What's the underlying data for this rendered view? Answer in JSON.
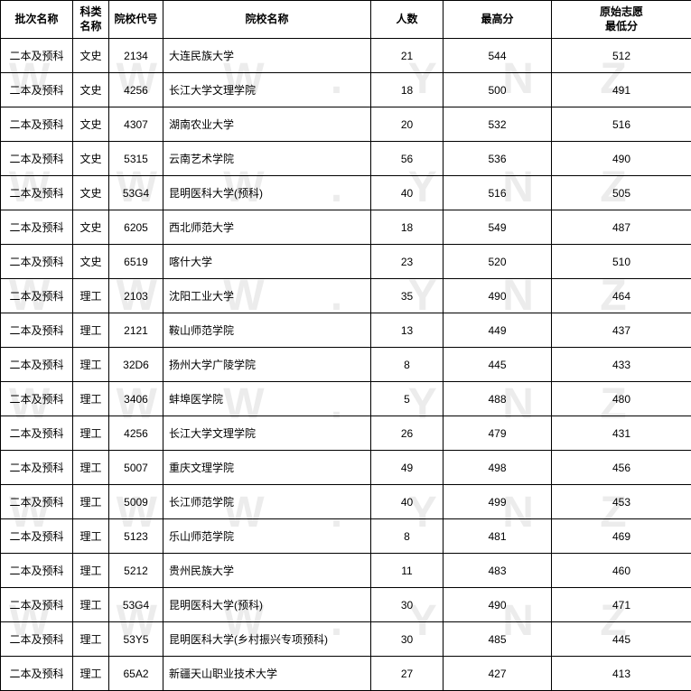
{
  "watermark_text": "W W W . Y N Z S . C N",
  "watermark_color": "rgba(200,200,200,0.35)",
  "table": {
    "columns": [
      "批次名称",
      "科类\n名称",
      "院校代号",
      "院校名称",
      "人数",
      "最高分",
      "原始志愿\n最低分"
    ],
    "rows": [
      [
        "二本及预科",
        "文史",
        "2134",
        "大连民族大学",
        "21",
        "544",
        "512"
      ],
      [
        "二本及预科",
        "文史",
        "4256",
        "长江大学文理学院",
        "18",
        "500",
        "491"
      ],
      [
        "二本及预科",
        "文史",
        "4307",
        "湖南农业大学",
        "20",
        "532",
        "516"
      ],
      [
        "二本及预科",
        "文史",
        "5315",
        "云南艺术学院",
        "56",
        "536",
        "490"
      ],
      [
        "二本及预科",
        "文史",
        "53G4",
        "昆明医科大学(预科)",
        "40",
        "516",
        "505"
      ],
      [
        "二本及预科",
        "文史",
        "6205",
        "西北师范大学",
        "18",
        "549",
        "487"
      ],
      [
        "二本及预科",
        "文史",
        "6519",
        "喀什大学",
        "23",
        "520",
        "510"
      ],
      [
        "二本及预科",
        "理工",
        "2103",
        "沈阳工业大学",
        "35",
        "490",
        "464"
      ],
      [
        "二本及预科",
        "理工",
        "2121",
        "鞍山师范学院",
        "13",
        "449",
        "437"
      ],
      [
        "二本及预科",
        "理工",
        "32D6",
        "扬州大学广陵学院",
        "8",
        "445",
        "433"
      ],
      [
        "二本及预科",
        "理工",
        "3406",
        "蚌埠医学院",
        "5",
        "488",
        "480"
      ],
      [
        "二本及预科",
        "理工",
        "4256",
        "长江大学文理学院",
        "26",
        "479",
        "431"
      ],
      [
        "二本及预科",
        "理工",
        "5007",
        "重庆文理学院",
        "49",
        "498",
        "456"
      ],
      [
        "二本及预科",
        "理工",
        "5009",
        "长江师范学院",
        "40",
        "499",
        "453"
      ],
      [
        "二本及预科",
        "理工",
        "5123",
        "乐山师范学院",
        "8",
        "481",
        "469"
      ],
      [
        "二本及预科",
        "理工",
        "5212",
        "贵州民族大学",
        "11",
        "483",
        "460"
      ],
      [
        "二本及预科",
        "理工",
        "53G4",
        "昆明医科大学(预科)",
        "30",
        "490",
        "471"
      ],
      [
        "二本及预科",
        "理工",
        "53Y5",
        "昆明医科大学(乡村振兴专项预科)",
        "30",
        "485",
        "445"
      ],
      [
        "二本及预科",
        "理工",
        "65A2",
        "新疆天山职业技术大学",
        "27",
        "427",
        "413"
      ]
    ]
  }
}
